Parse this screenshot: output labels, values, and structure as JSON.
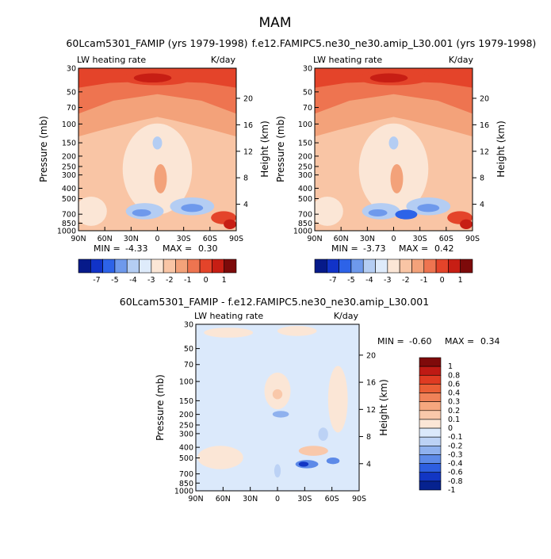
{
  "figure": {
    "title": "MAM"
  },
  "colors": {
    "main": [
      "#061a8a",
      "#1133c8",
      "#2d63e8",
      "#6e99ec",
      "#b4cdf3",
      "#deebfb",
      "#fbe6d6",
      "#f9c5a5",
      "#f3a27a",
      "#ee7450",
      "#e4442a",
      "#c71e14",
      "#7d0a0a"
    ],
    "diff": [
      "#06228f",
      "#1236c4",
      "#2d5ee0",
      "#5d8ae8",
      "#8fb1ee",
      "#bcd2f5",
      "#dbe9fb",
      "#fbe6d6",
      "#f9c8aa",
      "#f6a77e",
      "#f08258",
      "#ea5f36",
      "#df3b22",
      "#bf1a14",
      "#7f0a0a"
    ]
  },
  "chart_data": [
    {
      "type": "heatmap",
      "title": "60Lcam5301_FAMIP (yrs 1979-1998)",
      "subtitle_left": "LW heating rate",
      "subtitle_right": "K/day",
      "xlabel": "",
      "ylabel": "Pressure (mb)",
      "ylabel_right": "Height (km)",
      "x_ticks": [
        "90N",
        "60N",
        "30N",
        "0",
        "30S",
        "60S",
        "90S"
      ],
      "y_ticks": [
        "30",
        "50",
        "70",
        "100",
        "150",
        "200",
        "250",
        "300",
        "400",
        "500",
        "700",
        "850",
        "1000"
      ],
      "y_ticks_right": [
        "20",
        "16",
        "12",
        "8",
        "4"
      ],
      "stats": {
        "min_label": "MIN =",
        "min": "-4.33",
        "max_label": "MAX =",
        "max": "0.30"
      },
      "colorbar": {
        "orientation": "horizontal",
        "labels": [
          "-7",
          "-5",
          "-4",
          "-3",
          "-2",
          "-1",
          "0",
          "1"
        ]
      }
    },
    {
      "type": "heatmap",
      "title": "f.e12.FAMIPC5.ne30_ne30.amip_L30.001 (yrs 1979-1998)",
      "subtitle_left": "LW heating rate",
      "subtitle_right": "K/day",
      "xlabel": "",
      "ylabel": "Pressure (mb)",
      "ylabel_right": "Height (km)",
      "x_ticks": [
        "90N",
        "60N",
        "30N",
        "0",
        "30S",
        "60S",
        "90S"
      ],
      "y_ticks": [
        "30",
        "50",
        "70",
        "100",
        "150",
        "200",
        "250",
        "300",
        "400",
        "500",
        "700",
        "850",
        "1000"
      ],
      "y_ticks_right": [
        "20",
        "16",
        "12",
        "8",
        "4"
      ],
      "stats": {
        "min_label": "MIN =",
        "min": "-3.73",
        "max_label": "MAX =",
        "max": "0.42"
      },
      "colorbar": {
        "orientation": "horizontal",
        "labels": [
          "-7",
          "-5",
          "-4",
          "-3",
          "-2",
          "-1",
          "0",
          "1"
        ]
      }
    },
    {
      "type": "heatmap",
      "title": "60Lcam5301_FAMIP - f.e12.FAMIPC5.ne30_ne30.amip_L30.001",
      "subtitle_left": "LW heating rate",
      "subtitle_right": "K/day",
      "xlabel": "",
      "ylabel": "Pressure (mb)",
      "ylabel_right": "Height (km)",
      "x_ticks": [
        "90N",
        "60N",
        "30N",
        "0",
        "30S",
        "60S",
        "90S"
      ],
      "y_ticks": [
        "30",
        "50",
        "70",
        "100",
        "150",
        "200",
        "250",
        "300",
        "400",
        "500",
        "700",
        "850",
        "1000"
      ],
      "y_ticks_right": [
        "20",
        "16",
        "12",
        "8",
        "4"
      ],
      "stats": {
        "min_label": "MIN =",
        "min": "-0.60",
        "max_label": "MAX =",
        "max": "0.34"
      },
      "colorbar": {
        "orientation": "vertical",
        "labels": [
          "1",
          "0.8",
          "0.6",
          "0.4",
          "0.3",
          "0.2",
          "0.1",
          "0",
          "-0.1",
          "-0.2",
          "-0.3",
          "-0.4",
          "-0.6",
          "-0.8",
          "-1"
        ]
      }
    }
  ]
}
